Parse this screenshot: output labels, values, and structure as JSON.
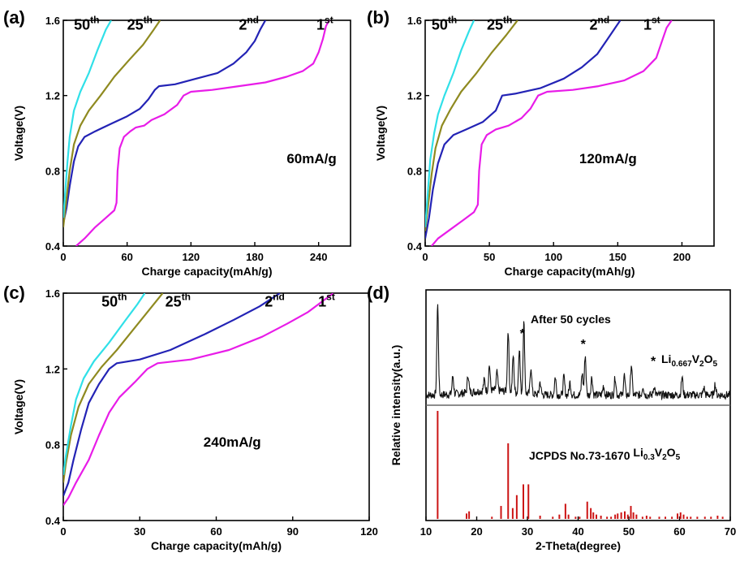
{
  "chart_data": [
    {
      "panel": "(a)",
      "type": "line",
      "xlabel": "Charge capacity(mAh/g)",
      "ylabel": "Voltage(V)",
      "xlim": [
        0,
        270
      ],
      "ylim": [
        0.4,
        1.6
      ],
      "xticks": [
        0,
        60,
        120,
        180,
        240
      ],
      "yticks": [
        0.4,
        0.8,
        1.2,
        1.6
      ],
      "annotation": "60mA/g",
      "series": [
        {
          "name": "1st",
          "color": "#e81ce8",
          "labelPos": [
            238,
            1.55
          ],
          "points": [
            [
              12,
              0.4
            ],
            [
              20,
              0.44
            ],
            [
              30,
              0.5
            ],
            [
              40,
              0.55
            ],
            [
              48,
              0.59
            ],
            [
              50,
              0.63
            ],
            [
              51,
              0.8
            ],
            [
              53,
              0.92
            ],
            [
              57,
              0.98
            ],
            [
              63,
              1.01
            ],
            [
              68,
              1.03
            ],
            [
              76,
              1.04
            ],
            [
              83,
              1.07
            ],
            [
              95,
              1.1
            ],
            [
              107,
              1.15
            ],
            [
              113,
              1.2
            ],
            [
              120,
              1.22
            ],
            [
              140,
              1.23
            ],
            [
              165,
              1.25
            ],
            [
              190,
              1.27
            ],
            [
              210,
              1.3
            ],
            [
              225,
              1.33
            ],
            [
              235,
              1.37
            ],
            [
              240,
              1.43
            ],
            [
              244,
              1.5
            ],
            [
              247,
              1.57
            ],
            [
              250,
              1.6
            ]
          ]
        },
        {
          "name": "2nd",
          "color": "#2323b5",
          "labelPos": [
            165,
            1.55
          ],
          "points": [
            [
              0,
              0.52
            ],
            [
              3,
              0.6
            ],
            [
              6,
              0.72
            ],
            [
              10,
              0.85
            ],
            [
              14,
              0.93
            ],
            [
              20,
              0.98
            ],
            [
              30,
              1.01
            ],
            [
              45,
              1.05
            ],
            [
              60,
              1.09
            ],
            [
              72,
              1.13
            ],
            [
              80,
              1.18
            ],
            [
              86,
              1.23
            ],
            [
              90,
              1.25
            ],
            [
              105,
              1.26
            ],
            [
              125,
              1.29
            ],
            [
              145,
              1.32
            ],
            [
              160,
              1.37
            ],
            [
              172,
              1.43
            ],
            [
              180,
              1.49
            ],
            [
              185,
              1.55
            ],
            [
              190,
              1.6
            ]
          ]
        },
        {
          "name": "25th",
          "color": "#8f8a20",
          "labelPos": [
            60,
            1.55
          ],
          "points": [
            [
              0,
              0.5
            ],
            [
              3,
              0.65
            ],
            [
              6,
              0.8
            ],
            [
              10,
              0.94
            ],
            [
              16,
              1.04
            ],
            [
              24,
              1.12
            ],
            [
              35,
              1.2
            ],
            [
              48,
              1.3
            ],
            [
              62,
              1.39
            ],
            [
              75,
              1.47
            ],
            [
              85,
              1.55
            ],
            [
              91,
              1.6
            ]
          ]
        },
        {
          "name": "50th",
          "color": "#30e0e8",
          "labelPos": [
            10,
            1.55
          ],
          "points": [
            [
              0,
              0.55
            ],
            [
              2,
              0.7
            ],
            [
              4,
              0.85
            ],
            [
              6,
              0.98
            ],
            [
              10,
              1.12
            ],
            [
              16,
              1.22
            ],
            [
              24,
              1.32
            ],
            [
              32,
              1.44
            ],
            [
              40,
              1.55
            ],
            [
              45,
              1.6
            ]
          ]
        }
      ]
    },
    {
      "panel": "(b)",
      "type": "line",
      "xlabel": "Charge capacity(mAh/g)",
      "ylabel": "Voltage(V)",
      "xlim": [
        0,
        225
      ],
      "ylim": [
        0.4,
        1.6
      ],
      "xticks": [
        0,
        50,
        100,
        150,
        200
      ],
      "yticks": [
        0.4,
        0.8,
        1.2,
        1.6
      ],
      "annotation": "120mA/g",
      "series": [
        {
          "name": "1st",
          "color": "#e81ce8",
          "labelPos": [
            170,
            1.55
          ],
          "points": [
            [
              5,
              0.4
            ],
            [
              10,
              0.44
            ],
            [
              20,
              0.49
            ],
            [
              30,
              0.54
            ],
            [
              38,
              0.58
            ],
            [
              41,
              0.62
            ],
            [
              42,
              0.8
            ],
            [
              44,
              0.94
            ],
            [
              48,
              0.99
            ],
            [
              55,
              1.02
            ],
            [
              65,
              1.04
            ],
            [
              75,
              1.08
            ],
            [
              82,
              1.13
            ],
            [
              88,
              1.2
            ],
            [
              95,
              1.22
            ],
            [
              115,
              1.23
            ],
            [
              135,
              1.25
            ],
            [
              155,
              1.28
            ],
            [
              170,
              1.33
            ],
            [
              180,
              1.4
            ],
            [
              185,
              1.5
            ],
            [
              188,
              1.56
            ],
            [
              192,
              1.6
            ]
          ]
        },
        {
          "name": "2nd",
          "color": "#2323b5",
          "labelPos": [
            128,
            1.55
          ],
          "points": [
            [
              0,
              0.44
            ],
            [
              3,
              0.55
            ],
            [
              6,
              0.7
            ],
            [
              10,
              0.84
            ],
            [
              15,
              0.94
            ],
            [
              22,
              0.99
            ],
            [
              32,
              1.02
            ],
            [
              45,
              1.06
            ],
            [
              55,
              1.12
            ],
            [
              60,
              1.2
            ],
            [
              70,
              1.21
            ],
            [
              90,
              1.24
            ],
            [
              108,
              1.29
            ],
            [
              122,
              1.35
            ],
            [
              134,
              1.42
            ],
            [
              142,
              1.5
            ],
            [
              148,
              1.56
            ],
            [
              152,
              1.6
            ]
          ]
        },
        {
          "name": "25th",
          "color": "#8f8a20",
          "labelPos": [
            48,
            1.55
          ],
          "points": [
            [
              0,
              0.48
            ],
            [
              2,
              0.6
            ],
            [
              5,
              0.78
            ],
            [
              8,
              0.92
            ],
            [
              13,
              1.04
            ],
            [
              20,
              1.13
            ],
            [
              28,
              1.22
            ],
            [
              40,
              1.32
            ],
            [
              52,
              1.43
            ],
            [
              63,
              1.52
            ],
            [
              72,
              1.6
            ]
          ]
        },
        {
          "name": "50th",
          "color": "#30e0e8",
          "labelPos": [
            5,
            1.55
          ],
          "points": [
            [
              0,
              0.5
            ],
            [
              2,
              0.68
            ],
            [
              4,
              0.86
            ],
            [
              7,
              1.0
            ],
            [
              10,
              1.1
            ],
            [
              15,
              1.2
            ],
            [
              22,
              1.32
            ],
            [
              28,
              1.44
            ],
            [
              34,
              1.54
            ],
            [
              38,
              1.6
            ]
          ]
        }
      ]
    },
    {
      "panel": "(c)",
      "type": "line",
      "xlabel": "Charge capacity(mAh/g)",
      "ylabel": "Voltage(V)",
      "xlim": [
        0,
        120
      ],
      "ylim": [
        0.4,
        1.6
      ],
      "xticks": [
        0,
        30,
        60,
        90,
        120
      ],
      "yticks": [
        0.4,
        0.8,
        1.2,
        1.6
      ],
      "annotation": "240mA/g",
      "series": [
        {
          "name": "1st",
          "color": "#e81ce8",
          "labelPos": [
            100,
            1.53
          ],
          "points": [
            [
              0,
              0.48
            ],
            [
              2,
              0.52
            ],
            [
              5,
              0.6
            ],
            [
              10,
              0.72
            ],
            [
              14,
              0.85
            ],
            [
              18,
              0.97
            ],
            [
              22,
              1.05
            ],
            [
              28,
              1.13
            ],
            [
              33,
              1.2
            ],
            [
              37,
              1.23
            ],
            [
              50,
              1.25
            ],
            [
              65,
              1.3
            ],
            [
              78,
              1.37
            ],
            [
              88,
              1.44
            ],
            [
              96,
              1.5
            ],
            [
              102,
              1.56
            ],
            [
              106,
              1.6
            ]
          ]
        },
        {
          "name": "2nd",
          "color": "#2323b5",
          "labelPos": [
            79,
            1.53
          ],
          "points": [
            [
              0,
              0.53
            ],
            [
              2,
              0.6
            ],
            [
              4,
              0.72
            ],
            [
              7,
              0.88
            ],
            [
              10,
              1.02
            ],
            [
              14,
              1.12
            ],
            [
              18,
              1.2
            ],
            [
              21,
              1.23
            ],
            [
              30,
              1.25
            ],
            [
              42,
              1.3
            ],
            [
              55,
              1.38
            ],
            [
              67,
              1.46
            ],
            [
              77,
              1.53
            ],
            [
              85,
              1.6
            ]
          ]
        },
        {
          "name": "25th",
          "color": "#8f8a20",
          "labelPos": [
            40,
            1.53
          ],
          "points": [
            [
              0,
              0.6
            ],
            [
              1,
              0.7
            ],
            [
              3,
              0.85
            ],
            [
              6,
              1.0
            ],
            [
              10,
              1.12
            ],
            [
              15,
              1.21
            ],
            [
              21,
              1.3
            ],
            [
              27,
              1.4
            ],
            [
              33,
              1.5
            ],
            [
              39,
              1.6
            ]
          ]
        },
        {
          "name": "50th",
          "color": "#30e0e8",
          "labelPos": [
            15,
            1.53
          ],
          "points": [
            [
              0,
              0.64
            ],
            [
              1,
              0.74
            ],
            [
              3,
              0.9
            ],
            [
              5,
              1.04
            ],
            [
              8,
              1.15
            ],
            [
              12,
              1.24
            ],
            [
              18,
              1.34
            ],
            [
              24,
              1.45
            ],
            [
              29,
              1.54
            ],
            [
              32,
              1.6
            ]
          ]
        }
      ]
    },
    {
      "panel": "(d)",
      "type": "line",
      "xlabel": "2-Theta(degree)",
      "ylabel": "Relative intensity(a.u.)",
      "xlim": [
        10,
        70
      ],
      "xticks": [
        10,
        20,
        30,
        40,
        50,
        60,
        70
      ],
      "top_label": "After 50 cycles",
      "star_marker": "*",
      "phase_label": "Li0.667V2O5",
      "reference_label": "JCPDS No.73-1670 Li0.3V2O5",
      "star_positions": [
        29,
        41
      ],
      "pattern_peaks": [
        [
          12.3,
          1.0
        ],
        [
          15.3,
          0.2
        ],
        [
          18.3,
          0.2
        ],
        [
          21.5,
          0.12
        ],
        [
          22.5,
          0.28
        ],
        [
          24,
          0.2
        ],
        [
          26.2,
          0.68
        ],
        [
          27.2,
          0.4
        ],
        [
          28.4,
          0.5
        ],
        [
          29.3,
          0.78
        ],
        [
          30.7,
          0.3
        ],
        [
          32.5,
          0.14
        ],
        [
          35.5,
          0.2
        ],
        [
          37.2,
          0.2
        ],
        [
          38.4,
          0.14
        ],
        [
          40.8,
          0.24
        ],
        [
          41.4,
          0.44
        ],
        [
          42.7,
          0.2
        ],
        [
          45,
          0.1
        ],
        [
          47.3,
          0.2
        ],
        [
          49.1,
          0.22
        ],
        [
          50.5,
          0.34
        ],
        [
          52.8,
          0.1
        ],
        [
          55,
          0.1
        ],
        [
          60.5,
          0.2
        ],
        [
          64.8,
          0.08
        ],
        [
          67,
          0.12
        ]
      ],
      "reference_lines": [
        [
          12.3,
          1.0
        ],
        [
          18,
          0.05
        ],
        [
          18.5,
          0.07
        ],
        [
          23,
          0.02
        ],
        [
          24.8,
          0.12
        ],
        [
          26.2,
          0.7
        ],
        [
          27.1,
          0.1
        ],
        [
          27.9,
          0.22
        ],
        [
          29.2,
          0.32
        ],
        [
          30.2,
          0.32
        ],
        [
          32.5,
          0.03
        ],
        [
          35,
          0.02
        ],
        [
          36.3,
          0.04
        ],
        [
          37.5,
          0.14
        ],
        [
          38.1,
          0.04
        ],
        [
          39.5,
          0.02
        ],
        [
          40.3,
          0.02
        ],
        [
          41.8,
          0.16
        ],
        [
          42.5,
          0.1
        ],
        [
          43,
          0.06
        ],
        [
          43.6,
          0.04
        ],
        [
          44.5,
          0.03
        ],
        [
          45.7,
          0.02
        ],
        [
          46.5,
          0.02
        ],
        [
          47.3,
          0.04
        ],
        [
          47.8,
          0.05
        ],
        [
          48.5,
          0.06
        ],
        [
          49.2,
          0.07
        ],
        [
          49.8,
          0.04
        ],
        [
          50.4,
          0.12
        ],
        [
          50.9,
          0.06
        ],
        [
          51.5,
          0.04
        ],
        [
          52.7,
          0.02
        ],
        [
          53.5,
          0.03
        ],
        [
          54.2,
          0.02
        ],
        [
          56,
          0.02
        ],
        [
          57.2,
          0.02
        ],
        [
          58.5,
          0.02
        ],
        [
          59.6,
          0.05
        ],
        [
          60.2,
          0.06
        ],
        [
          60.8,
          0.04
        ],
        [
          61.5,
          0.02
        ],
        [
          62.2,
          0.02
        ],
        [
          63.5,
          0.02
        ],
        [
          65,
          0.02
        ],
        [
          66.2,
          0.02
        ],
        [
          67.5,
          0.03
        ],
        [
          68.5,
          0.02
        ]
      ]
    }
  ]
}
